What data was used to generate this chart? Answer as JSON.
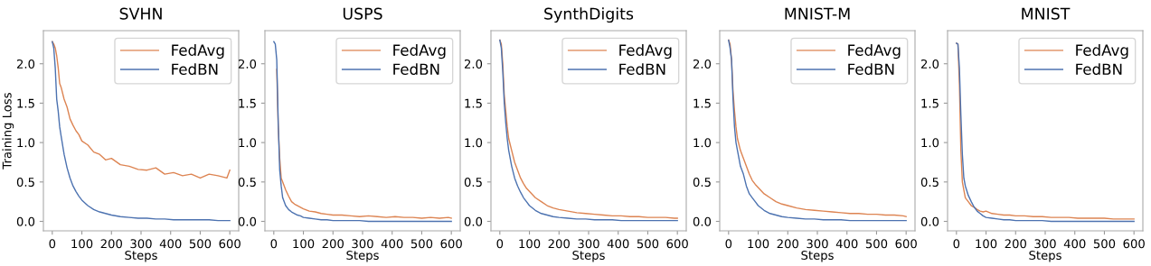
{
  "chart_data": [
    {
      "type": "line",
      "title": "SVHN",
      "xlabel": "Steps",
      "ylabel": "Training Loss",
      "legend": "top right",
      "xlim": [
        -30,
        630
      ],
      "ylim": [
        -0.12,
        2.42
      ],
      "xticks": [
        0,
        100,
        200,
        300,
        400,
        500,
        600
      ],
      "yticks": [
        {
          "value": 0,
          "label": "0.0"
        },
        {
          "value": 0.5,
          "label": "0.5"
        },
        {
          "value": 1,
          "label": "1.0"
        },
        {
          "value": 1.5,
          "label": "1.5"
        },
        {
          "value": 2,
          "label": "2.0"
        }
      ],
      "x": [
        0,
        5,
        10,
        15,
        20,
        25,
        30,
        40,
        50,
        60,
        70,
        80,
        90,
        100,
        120,
        140,
        160,
        180,
        200,
        230,
        260,
        290,
        320,
        350,
        380,
        410,
        440,
        470,
        500,
        530,
        560,
        590,
        600
      ],
      "series": [
        {
          "name": "FedAvg",
          "color": "#dd8452",
          "values": [
            2.28,
            2.25,
            2.2,
            2.1,
            1.95,
            1.75,
            1.7,
            1.55,
            1.45,
            1.3,
            1.22,
            1.15,
            1.1,
            1.02,
            0.97,
            0.88,
            0.85,
            0.78,
            0.8,
            0.72,
            0.7,
            0.66,
            0.65,
            0.68,
            0.6,
            0.62,
            0.58,
            0.6,
            0.55,
            0.6,
            0.58,
            0.55,
            0.65
          ]
        },
        {
          "name": "FedBN",
          "color": "#4c72b0",
          "values": [
            2.28,
            2.2,
            1.95,
            1.55,
            1.4,
            1.2,
            1.08,
            0.85,
            0.68,
            0.55,
            0.45,
            0.38,
            0.32,
            0.27,
            0.2,
            0.15,
            0.12,
            0.1,
            0.08,
            0.06,
            0.05,
            0.04,
            0.04,
            0.03,
            0.03,
            0.02,
            0.02,
            0.02,
            0.02,
            0.02,
            0.01,
            0.01,
            0.01
          ]
        }
      ]
    },
    {
      "type": "line",
      "title": "USPS",
      "xlabel": "Steps",
      "legend": "top right",
      "xlim": [
        -30,
        630
      ],
      "ylim": [
        -0.12,
        2.42
      ],
      "xticks": [
        0,
        100,
        200,
        300,
        400,
        500,
        600
      ],
      "yticks": [
        {
          "value": 0,
          "label": "0.0"
        },
        {
          "value": 0.5,
          "label": "0.5"
        },
        {
          "value": 1,
          "label": "1.0"
        },
        {
          "value": 1.5,
          "label": "1.5"
        },
        {
          "value": 2,
          "label": "2.0"
        }
      ],
      "x": [
        0,
        5,
        10,
        15,
        20,
        25,
        30,
        40,
        50,
        60,
        70,
        80,
        90,
        100,
        120,
        140,
        160,
        180,
        200,
        230,
        260,
        290,
        320,
        350,
        380,
        410,
        440,
        470,
        500,
        530,
        560,
        590,
        600
      ],
      "series": [
        {
          "name": "FedAvg",
          "color": "#dd8452",
          "values": [
            null,
            null,
            1.93,
            1.2,
            0.8,
            0.55,
            0.5,
            0.4,
            0.32,
            0.25,
            0.22,
            0.2,
            0.18,
            0.16,
            0.13,
            0.12,
            0.1,
            0.09,
            0.08,
            0.08,
            0.07,
            0.06,
            0.07,
            0.06,
            0.05,
            0.06,
            0.05,
            0.05,
            0.04,
            0.05,
            0.04,
            0.05,
            0.04
          ]
        },
        {
          "name": "FedBN",
          "color": "#4c72b0",
          "values": [
            2.28,
            2.25,
            2.05,
            1.25,
            0.65,
            0.45,
            0.3,
            0.2,
            0.15,
            0.12,
            0.1,
            0.08,
            0.07,
            0.05,
            0.04,
            0.03,
            0.02,
            0.02,
            0.01,
            0.01,
            0.01,
            0.01,
            0.0,
            0.0,
            0.0,
            0.0,
            0.0,
            0.0,
            0.0,
            0.0,
            0.0,
            0.0,
            0.0
          ]
        }
      ]
    },
    {
      "type": "line",
      "title": "SynthDigits",
      "xlabel": "Steps",
      "legend": "top right",
      "xlim": [
        -30,
        630
      ],
      "ylim": [
        -0.12,
        2.42
      ],
      "xticks": [
        0,
        100,
        200,
        300,
        400,
        500,
        600
      ],
      "yticks": [
        {
          "value": 0,
          "label": "0.0"
        },
        {
          "value": 0.5,
          "label": "0.5"
        },
        {
          "value": 1,
          "label": "1.0"
        },
        {
          "value": 1.5,
          "label": "1.5"
        },
        {
          "value": 2,
          "label": "2.0"
        }
      ],
      "x": [
        0,
        5,
        10,
        15,
        20,
        25,
        30,
        40,
        50,
        60,
        70,
        80,
        90,
        100,
        120,
        140,
        160,
        180,
        200,
        230,
        260,
        290,
        320,
        350,
        380,
        410,
        440,
        470,
        500,
        530,
        560,
        590,
        600
      ],
      "series": [
        {
          "name": "FedAvg",
          "color": "#dd8452",
          "values": [
            2.3,
            2.25,
            2.0,
            1.6,
            1.4,
            1.2,
            1.05,
            0.9,
            0.75,
            0.65,
            0.55,
            0.48,
            0.42,
            0.38,
            0.3,
            0.25,
            0.2,
            0.17,
            0.15,
            0.13,
            0.11,
            0.1,
            0.09,
            0.08,
            0.07,
            0.07,
            0.06,
            0.06,
            0.05,
            0.05,
            0.05,
            0.04,
            0.04
          ]
        },
        {
          "name": "FedBN",
          "color": "#4c72b0",
          "values": [
            2.3,
            2.2,
            1.9,
            1.5,
            1.25,
            1.05,
            0.9,
            0.7,
            0.55,
            0.45,
            0.37,
            0.3,
            0.25,
            0.2,
            0.14,
            0.1,
            0.08,
            0.06,
            0.05,
            0.04,
            0.03,
            0.03,
            0.02,
            0.02,
            0.02,
            0.01,
            0.01,
            0.01,
            0.01,
            0.01,
            0.01,
            0.01,
            0.01
          ]
        }
      ]
    },
    {
      "type": "line",
      "title": "MNIST-M",
      "xlabel": "Steps",
      "legend": "top right",
      "xlim": [
        -30,
        630
      ],
      "ylim": [
        -0.12,
        2.42
      ],
      "xticks": [
        0,
        100,
        200,
        300,
        400,
        500,
        600
      ],
      "yticks": [
        {
          "value": 0,
          "label": "0.0"
        },
        {
          "value": 0.5,
          "label": "0.5"
        },
        {
          "value": 1,
          "label": "1.0"
        },
        {
          "value": 1.5,
          "label": "1.5"
        },
        {
          "value": 2,
          "label": "2.0"
        }
      ],
      "x": [
        0,
        5,
        10,
        15,
        20,
        25,
        30,
        40,
        50,
        60,
        70,
        80,
        90,
        100,
        120,
        140,
        160,
        180,
        200,
        230,
        260,
        290,
        320,
        350,
        380,
        410,
        440,
        470,
        500,
        530,
        560,
        590,
        600
      ],
      "series": [
        {
          "name": "FedAvg",
          "color": "#dd8452",
          "values": [
            2.3,
            2.25,
            2.05,
            1.65,
            1.4,
            1.2,
            1.05,
            0.9,
            0.8,
            0.7,
            0.6,
            0.52,
            0.47,
            0.43,
            0.35,
            0.3,
            0.25,
            0.22,
            0.2,
            0.17,
            0.15,
            0.14,
            0.13,
            0.12,
            0.11,
            0.1,
            0.1,
            0.09,
            0.09,
            0.08,
            0.08,
            0.07,
            0.06
          ]
        },
        {
          "name": "FedBN",
          "color": "#4c72b0",
          "values": [
            2.3,
            2.2,
            2.05,
            1.55,
            1.2,
            1.0,
            0.9,
            0.7,
            0.6,
            0.45,
            0.35,
            0.3,
            0.25,
            0.2,
            0.14,
            0.1,
            0.08,
            0.06,
            0.05,
            0.04,
            0.03,
            0.03,
            0.02,
            0.02,
            0.02,
            0.01,
            0.01,
            0.01,
            0.01,
            0.01,
            0.01,
            0.01,
            0.01
          ]
        }
      ]
    },
    {
      "type": "line",
      "title": "MNIST",
      "xlabel": "Steps",
      "legend": "top right",
      "xlim": [
        -30,
        630
      ],
      "ylim": [
        -0.12,
        2.42
      ],
      "xticks": [
        0,
        100,
        200,
        300,
        400,
        500,
        600
      ],
      "yticks": [
        {
          "value": 0,
          "label": "0.0"
        },
        {
          "value": 0.5,
          "label": "0.5"
        },
        {
          "value": 1,
          "label": "1.0"
        },
        {
          "value": 1.5,
          "label": "1.5"
        },
        {
          "value": 2,
          "label": "2.0"
        }
      ],
      "x": [
        0,
        5,
        10,
        15,
        20,
        25,
        30,
        40,
        50,
        60,
        70,
        80,
        90,
        100,
        120,
        140,
        160,
        180,
        200,
        230,
        260,
        290,
        320,
        350,
        380,
        410,
        440,
        470,
        500,
        530,
        560,
        590,
        600
      ],
      "series": [
        {
          "name": "FedAvg",
          "color": "#dd8452",
          "values": [
            2.26,
            2.25,
            1.75,
            0.9,
            0.5,
            0.4,
            0.3,
            0.25,
            0.2,
            0.18,
            0.15,
            0.13,
            0.12,
            0.13,
            0.1,
            0.09,
            0.08,
            0.08,
            0.07,
            0.07,
            0.06,
            0.06,
            0.05,
            0.05,
            0.05,
            0.04,
            0.04,
            0.04,
            0.04,
            0.03,
            0.03,
            0.03,
            0.03
          ]
        },
        {
          "name": "FedBN",
          "color": "#4c72b0",
          "values": [
            2.26,
            2.25,
            1.95,
            1.35,
            0.85,
            0.55,
            0.45,
            0.33,
            0.25,
            0.18,
            0.13,
            0.1,
            0.07,
            0.05,
            0.04,
            0.03,
            0.02,
            0.02,
            0.01,
            0.01,
            0.01,
            0.01,
            0.0,
            0.0,
            0.0,
            0.0,
            0.0,
            0.0,
            0.0,
            0.0,
            0.0,
            0.0,
            0.0
          ]
        }
      ]
    }
  ]
}
